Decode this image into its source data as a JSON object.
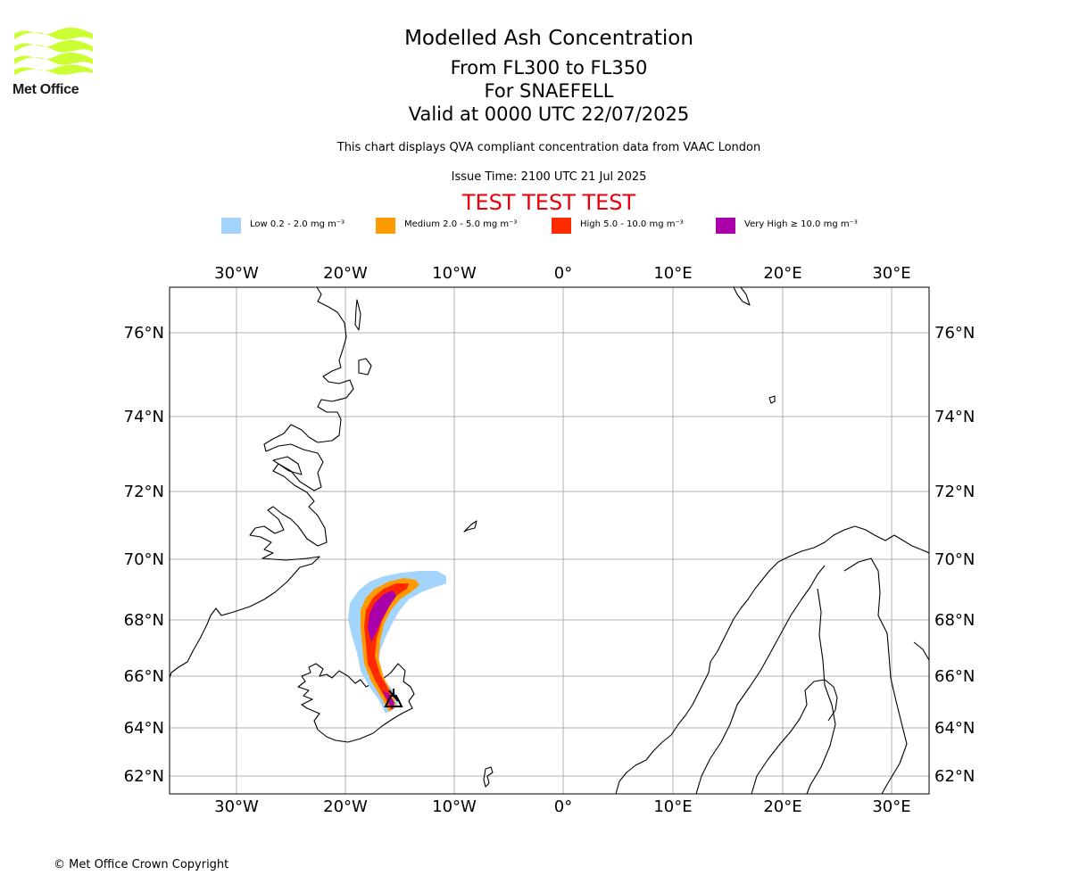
{
  "header": {
    "title": "Modelled Ash Concentration",
    "levels": "From FL300 to FL350",
    "volcano": "For SNAEFELL",
    "valid": "Valid at 0000 UTC 22/07/2025",
    "subtitle": "This chart displays QVA compliant concentration data from VAAC London",
    "issue_time": "Issue Time: 2100 UTC 21 Jul 2025",
    "test_banner": "TEST TEST TEST",
    "test_color": "#e8000a"
  },
  "logo": {
    "text": "Met Office",
    "color": "#ccff33",
    "icon": "met-office-wave-logo"
  },
  "legend": [
    {
      "label": "Low 0.2 - 2.0 mg m⁻³",
      "color": "#a3d4fb"
    },
    {
      "label": "Medium 2.0 - 5.0 mg m⁻³",
      "color": "#ff9a00"
    },
    {
      "label": "High 5.0 - 10.0 mg m⁻³",
      "color": "#ff2a00"
    },
    {
      "label": "Very High ≥ 10.0 mg m⁻³",
      "color": "#aa00aa"
    }
  ],
  "map": {
    "lon_labels": [
      "30°W",
      "20°W",
      "10°W",
      "0°",
      "10°E",
      "20°E",
      "30°E"
    ],
    "lat_labels": [
      "76°N",
      "74°N",
      "72°N",
      "70°N",
      "68°N",
      "66°N",
      "64°N",
      "62°N"
    ],
    "grid_color": "#b0b0b0",
    "volcano_marker": "volcano-icon"
  },
  "footer": {
    "copyright": "© Met Office Crown Copyright"
  }
}
